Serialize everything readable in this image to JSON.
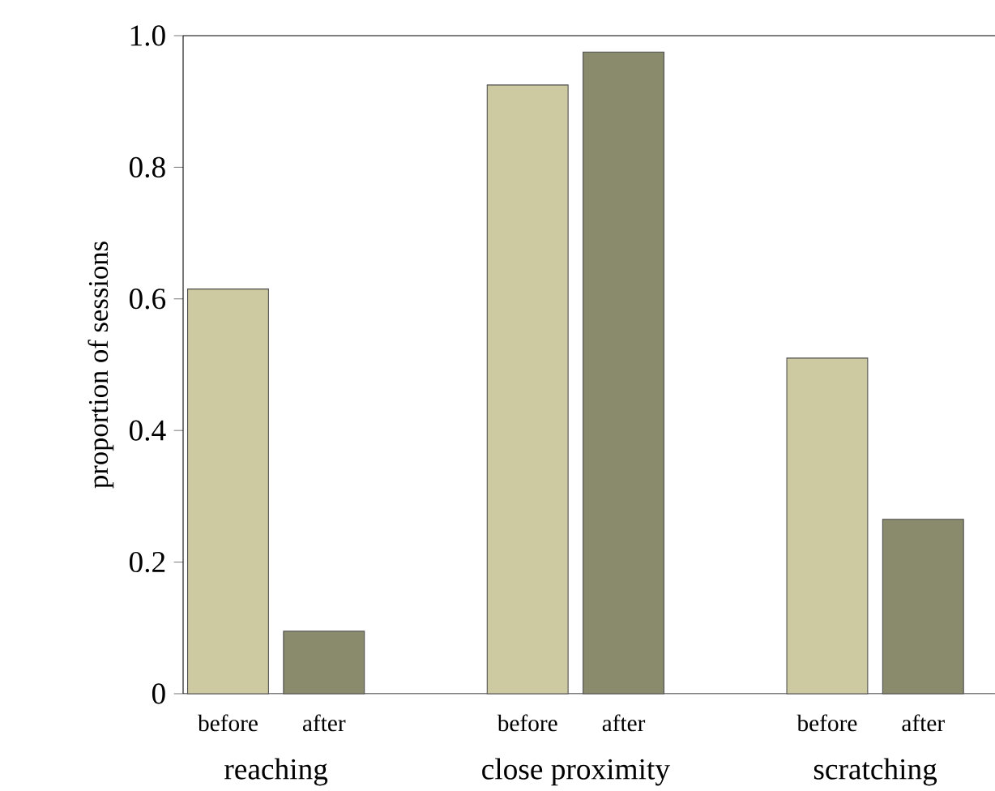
{
  "chart_data": {
    "type": "bar",
    "ylabel": "proportion of sessions",
    "categories": [
      "reaching",
      "close proximity",
      "scratching"
    ],
    "series": [
      {
        "name": "before",
        "color": "#cdc9a1",
        "values": [
          0.615,
          0.925,
          0.51
        ]
      },
      {
        "name": "after",
        "color": "#8a8a6c",
        "values": [
          0.095,
          0.975,
          0.265
        ]
      }
    ],
    "ylim": [
      0,
      1
    ],
    "yticks": [
      0,
      0.2,
      0.4,
      0.6,
      0.8,
      {
        "value": 1,
        "label": "1.0"
      }
    ]
  }
}
